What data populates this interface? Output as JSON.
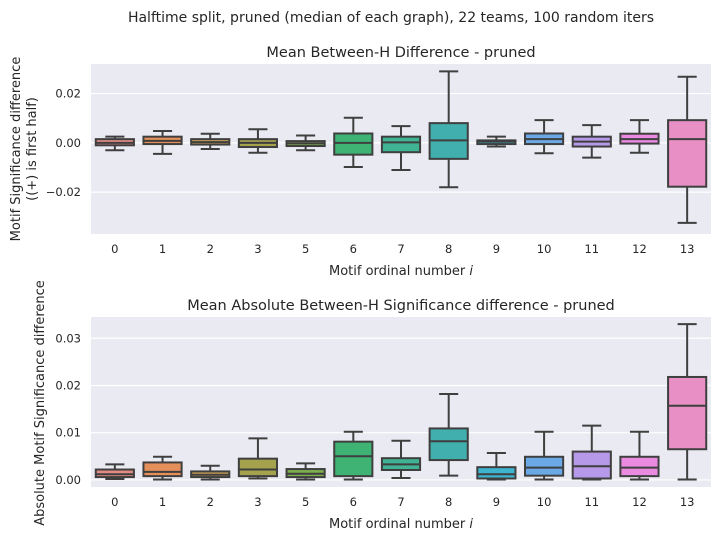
{
  "figure": {
    "suptitle": "Halftime split, pruned (median of each graph), 22 teams, 100 random iters"
  },
  "chart_data": [
    {
      "type": "box",
      "title": "Mean Between-H Difference - pruned",
      "xlabel": "Motif ordinal number i",
      "xlabel_text": "Motif ordinal number ",
      "xlabel_var": "i",
      "ylabel": [
        "Motif Significance difference",
        "((+) is first half)"
      ],
      "ylim": [
        -0.037,
        0.032
      ],
      "yticks": [
        -0.02,
        0.0,
        0.02
      ],
      "ytick_labels": [
        "−0.02",
        "0.00",
        "0.02"
      ],
      "grid": true,
      "categories": [
        "0",
        "1",
        "2",
        "3",
        "5",
        "6",
        "7",
        "8",
        "9",
        "10",
        "11",
        "12",
        "13"
      ],
      "boxes": [
        {
          "whislo": -0.003,
          "q1": -0.001,
          "med": 0.0,
          "q3": 0.0015,
          "whishi": 0.0025
        },
        {
          "whislo": -0.0045,
          "q1": -0.0005,
          "med": 0.0008,
          "q3": 0.0025,
          "whishi": 0.0048
        },
        {
          "whislo": -0.0025,
          "q1": -0.0007,
          "med": 0.0003,
          "q3": 0.0015,
          "whishi": 0.0037
        },
        {
          "whislo": -0.004,
          "q1": -0.0017,
          "med": 0.0,
          "q3": 0.0015,
          "whishi": 0.0055
        },
        {
          "whislo": -0.003,
          "q1": -0.0013,
          "med": -0.0002,
          "q3": 0.0007,
          "whishi": 0.003
        },
        {
          "whislo": -0.0098,
          "q1": -0.0048,
          "med": 0.0,
          "q3": 0.0038,
          "whishi": 0.0102
        },
        {
          "whislo": -0.011,
          "q1": -0.0038,
          "med": 0.0002,
          "q3": 0.0025,
          "whishi": 0.0068
        },
        {
          "whislo": -0.018,
          "q1": -0.0065,
          "med": 0.001,
          "q3": 0.008,
          "whishi": 0.029
        },
        {
          "whislo": -0.0015,
          "q1": -0.0005,
          "med": 0.0005,
          "q3": 0.001,
          "whishi": 0.0025
        },
        {
          "whislo": -0.0042,
          "q1": -0.0005,
          "med": 0.0015,
          "q3": 0.0038,
          "whishi": 0.0092
        },
        {
          "whislo": -0.006,
          "q1": -0.0015,
          "med": 0.0005,
          "q3": 0.0025,
          "whishi": 0.0072
        },
        {
          "whislo": -0.004,
          "q1": -0.0003,
          "med": 0.0015,
          "q3": 0.0037,
          "whishi": 0.0092
        },
        {
          "whislo": -0.0325,
          "q1": -0.0178,
          "med": 0.0015,
          "q3": 0.0092,
          "whishi": 0.0268
        }
      ]
    },
    {
      "type": "box",
      "title": "Mean Absolute Between-H Significance difference - pruned",
      "xlabel": "Motif ordinal number i",
      "xlabel_text": "Motif ordinal number ",
      "xlabel_var": "i",
      "ylabel": [
        "Absolute Motif Significance difference"
      ],
      "ylim": [
        -0.0015,
        0.0345
      ],
      "yticks": [
        0.0,
        0.01,
        0.02,
        0.03
      ],
      "ytick_labels": [
        "0.00",
        "0.01",
        "0.02",
        "0.03"
      ],
      "grid": true,
      "categories": [
        "0",
        "1",
        "2",
        "3",
        "5",
        "6",
        "7",
        "8",
        "9",
        "10",
        "11",
        "12",
        "13"
      ],
      "boxes": [
        {
          "whislo": 0.0002,
          "q1": 0.0006,
          "med": 0.0012,
          "q3": 0.0022,
          "whishi": 0.0033
        },
        {
          "whislo": 0.0001,
          "q1": 0.0008,
          "med": 0.0017,
          "q3": 0.0037,
          "whishi": 0.0049
        },
        {
          "whislo": 0.0001,
          "q1": 0.0006,
          "med": 0.0011,
          "q3": 0.0018,
          "whishi": 0.003
        },
        {
          "whislo": 0.0003,
          "q1": 0.0008,
          "med": 0.0022,
          "q3": 0.0045,
          "whishi": 0.0088
        },
        {
          "whislo": 0.0001,
          "q1": 0.0006,
          "med": 0.0013,
          "q3": 0.0023,
          "whishi": 0.0035
        },
        {
          "whislo": 0.0001,
          "q1": 0.0008,
          "med": 0.005,
          "q3": 0.0081,
          "whishi": 0.0102
        },
        {
          "whislo": 0.0004,
          "q1": 0.0021,
          "med": 0.0033,
          "q3": 0.0046,
          "whishi": 0.0083
        },
        {
          "whislo": 0.0009,
          "q1": 0.0042,
          "med": 0.0082,
          "q3": 0.0109,
          "whishi": 0.0182
        },
        {
          "whislo": 0.0001,
          "q1": 0.0003,
          "med": 0.0012,
          "q3": 0.0027,
          "whishi": 0.0057
        },
        {
          "whislo": 0.0001,
          "q1": 0.0009,
          "med": 0.0026,
          "q3": 0.0049,
          "whishi": 0.0102
        },
        {
          "whislo": 0.0001,
          "q1": 0.0003,
          "med": 0.0029,
          "q3": 0.006,
          "whishi": 0.0115
        },
        {
          "whislo": 0.0001,
          "q1": 0.0008,
          "med": 0.0026,
          "q3": 0.0049,
          "whishi": 0.0102
        },
        {
          "whislo": 0.0001,
          "q1": 0.0065,
          "med": 0.0157,
          "q3": 0.0218,
          "whishi": 0.033
        }
      ]
    }
  ],
  "palette": [
    "#e28a84",
    "#e5905a",
    "#ca9f55",
    "#a5a24e",
    "#7dae4f",
    "#3fb374",
    "#3fb394",
    "#40afad",
    "#3eb5cf",
    "#6aa9e6",
    "#b69ae9",
    "#ea8ae0",
    "#e88fc5"
  ]
}
